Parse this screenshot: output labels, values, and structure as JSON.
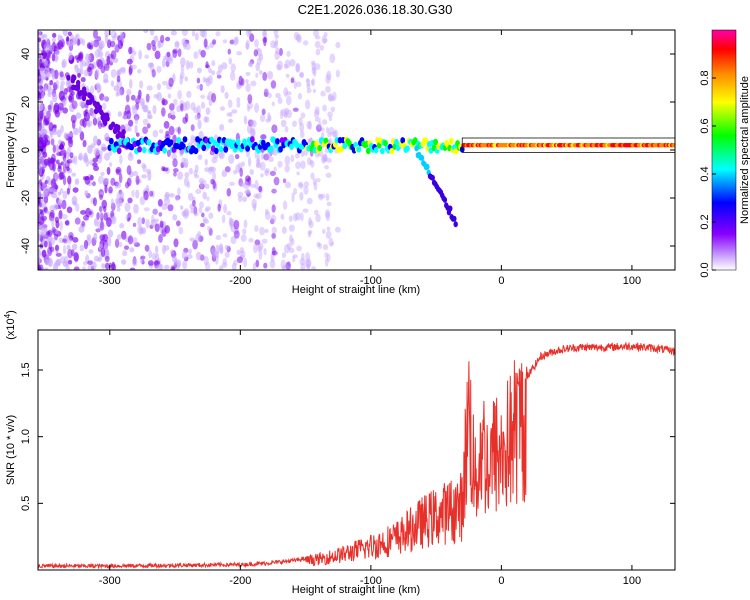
{
  "title": "C2E1.2026.036.18.30.G30",
  "chart_data": [
    {
      "type": "heatmap",
      "name": "spectrogram",
      "xlabel": "Height of straight line (km)",
      "ylabel": "Frequency (Hz)",
      "xlim": [
        -355,
        133
      ],
      "ylim": [
        -50,
        50
      ],
      "x_ticks": [
        -300,
        -200,
        -100,
        0,
        100
      ],
      "y_ticks": [
        -40,
        -20,
        0,
        20,
        40
      ],
      "x_tick_labels": [
        "-300",
        "-200",
        "-100",
        "0",
        "100"
      ],
      "y_tick_labels": [
        "-40",
        "-20",
        "0",
        "20",
        "40"
      ],
      "colorbar": {
        "label": "Normalized spectral amplitude",
        "range": [
          0,
          1
        ],
        "ticks": [
          0,
          0.2,
          0.4,
          0.6,
          0.8
        ],
        "tick_labels": [
          "0.0",
          "0.2",
          "0.4",
          "0.6",
          "0.8"
        ],
        "colormap": [
          "#ffffff",
          "#8800ff",
          "#0000ff",
          "#00ffff",
          "#00ff00",
          "#ffff00",
          "#ff8800",
          "#ff0000",
          "#ff00aa"
        ]
      },
      "carrier_frequency_hz": 2,
      "features": [
        {
          "name": "diagonal streak",
          "x_start": -330,
          "y_start": 30,
          "x_end": -285,
          "y_end": 2
        },
        {
          "name": "secondary trace",
          "x_start": -65,
          "y_start": 0,
          "x_end": -35,
          "y_end": -30
        }
      ]
    },
    {
      "type": "line",
      "name": "snr",
      "xlabel": "Height of straight line (km)",
      "ylabel": "SNR (10 * v/v)",
      "multiplier_label": "(x10^4)",
      "multiplier_base": "(x10",
      "multiplier_exp": "4",
      "xlim": [
        -355,
        133
      ],
      "ylim": [
        0,
        1.8
      ],
      "x_ticks": [
        -300,
        -200,
        -100,
        0,
        100
      ],
      "y_ticks": [
        0.5,
        1.0,
        1.5
      ],
      "x_tick_labels": [
        "-300",
        "-200",
        "-100",
        "0",
        "100"
      ],
      "y_tick_labels": [
        "0.5",
        "1.0",
        "1.5"
      ],
      "color": "#e8302a",
      "x": [
        -355,
        -300,
        -250,
        -200,
        -180,
        -160,
        -140,
        -120,
        -100,
        -80,
        -60,
        -50,
        -40,
        -30,
        -25,
        -20,
        -15,
        -10,
        -5,
        0,
        10,
        20,
        30,
        40,
        50,
        60,
        80,
        100,
        120,
        133
      ],
      "y": [
        0.03,
        0.03,
        0.035,
        0.04,
        0.05,
        0.07,
        0.1,
        0.15,
        0.22,
        0.3,
        0.45,
        0.5,
        0.55,
        0.6,
        1.5,
        0.8,
        1.2,
        0.95,
        1.1,
        1.05,
        1.3,
        1.45,
        1.6,
        1.64,
        1.66,
        1.67,
        1.67,
        1.68,
        1.66,
        1.64
      ]
    }
  ]
}
